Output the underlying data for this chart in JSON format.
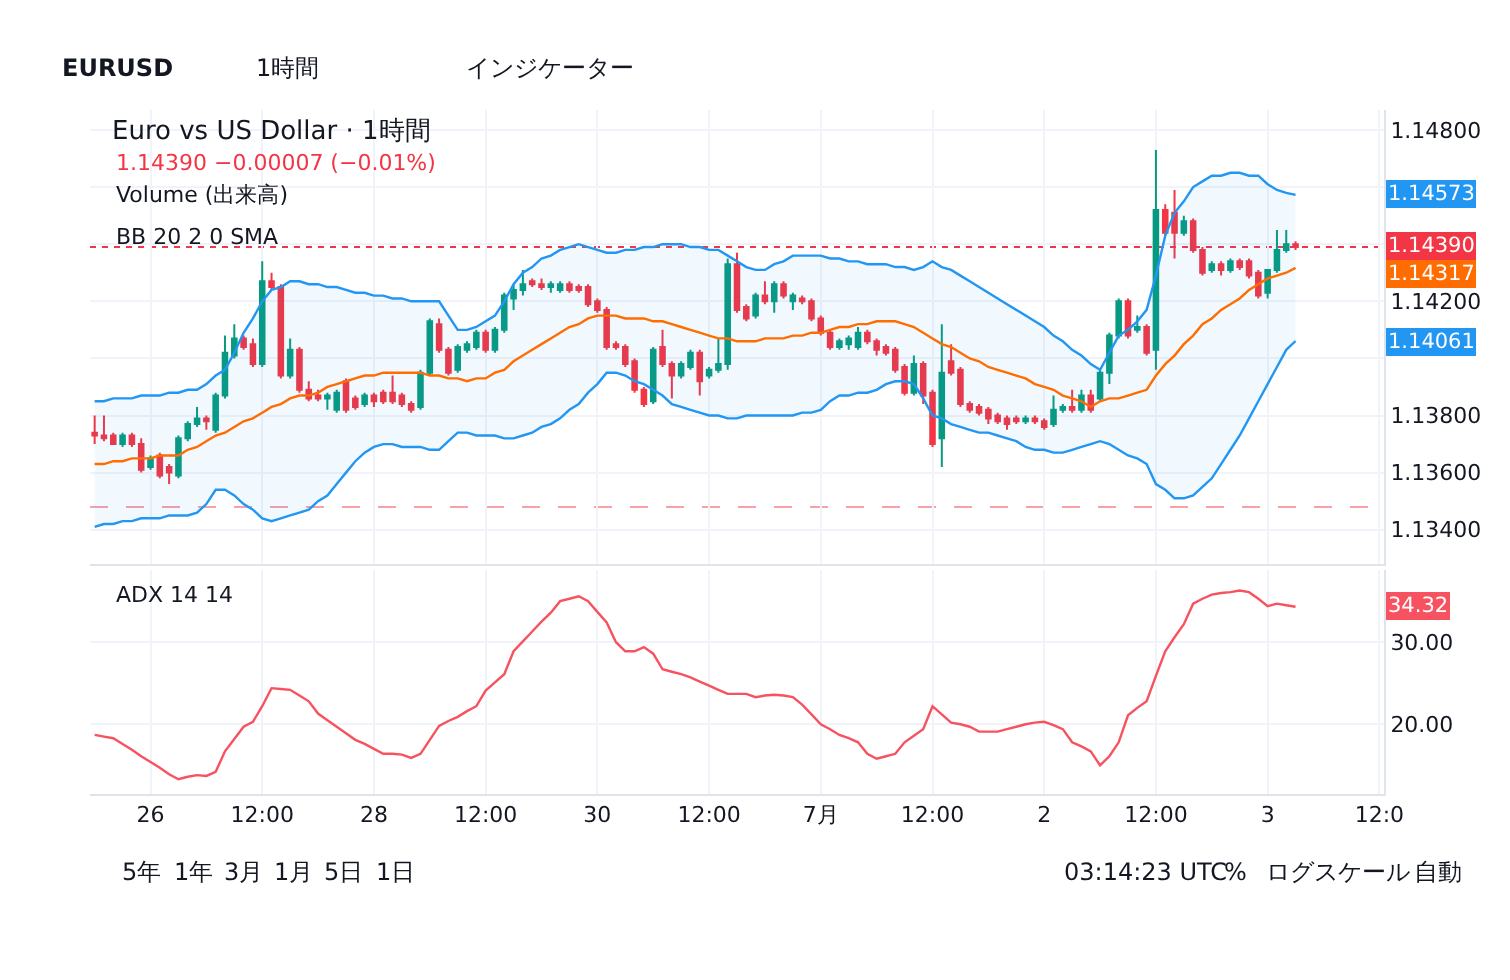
{
  "chart_data": [
    {
      "type": "candlestick",
      "title": "Euro vs US Dollar · 1時間",
      "subtitle": "1.14390 −0.00007 (−0.01%)",
      "annotations": [
        "EURUSD",
        "1時間",
        "インジケーター",
        "Volume (出来高)",
        "BB 20 2 0 SMA",
        "1.14573",
        "1.14317",
        "1.14061"
      ],
      "categories": [
        null,
        null,
        null,
        null,
        null,
        null,
        null,
        null,
        null,
        null,
        null,
        null,
        null,
        null,
        null,
        null,
        null,
        null,
        null,
        null,
        null,
        null,
        null,
        null,
        null,
        null,
        null,
        null,
        null,
        null,
        null,
        null,
        null,
        null,
        null,
        null,
        null,
        null,
        null,
        null,
        null,
        null,
        null,
        null,
        null,
        null,
        null,
        null,
        null,
        null,
        null,
        null,
        null,
        null,
        null,
        null,
        null,
        null,
        null,
        null,
        null,
        null,
        null,
        null,
        null,
        null,
        null,
        null,
        null,
        null,
        null,
        null,
        null,
        null,
        null,
        null,
        null,
        null,
        null,
        null,
        null,
        null,
        null,
        null,
        null,
        null,
        null,
        null,
        null,
        null,
        null,
        null,
        null,
        null,
        null,
        null,
        null,
        null,
        null,
        null,
        null,
        null,
        null,
        null,
        null,
        null,
        null,
        null,
        null,
        null,
        null,
        null,
        null,
        null,
        null,
        null,
        null,
        null,
        null,
        null,
        null,
        null,
        null,
        null,
        null,
        null,
        null,
        null,
        null,
        null,
        null,
        null,
        null,
        null,
        null,
        null,
        null,
        null,
        null
      ],
      "ohlc": [
        [
          1.1374,
          1.138,
          1.137,
          1.1373
        ],
        [
          1.1373,
          1.138,
          1.1371,
          1.1372
        ],
        [
          1.1373,
          1.1374,
          1.137,
          1.137
        ],
        [
          1.137,
          1.1374,
          1.1369,
          1.1373
        ],
        [
          1.1373,
          1.1374,
          1.1369,
          1.137
        ],
        [
          1.137,
          1.1372,
          1.136,
          1.1361
        ],
        [
          1.1362,
          1.1366,
          1.1361,
          1.1365
        ],
        [
          1.1366,
          1.1367,
          1.1358,
          1.1359
        ],
        [
          1.1362,
          1.1363,
          1.1356,
          1.136
        ],
        [
          1.1359,
          1.1373,
          1.1358,
          1.1372
        ],
        [
          1.1372,
          1.1378,
          1.1371,
          1.1377
        ],
        [
          1.1377,
          1.1383,
          1.1376,
          1.1379
        ],
        [
          1.1379,
          1.138,
          1.1375,
          1.1378
        ],
        [
          1.1375,
          1.1388,
          1.1374,
          1.1387
        ],
        [
          1.1387,
          1.1408,
          1.1386,
          1.1402
        ],
        [
          1.1401,
          1.1412,
          1.14,
          1.1407
        ],
        [
          1.1407,
          1.1408,
          1.1403,
          1.1404
        ],
        [
          1.1405,
          1.1407,
          1.1397,
          1.1398
        ],
        [
          1.1398,
          1.1434,
          1.1397,
          1.1427
        ],
        [
          1.1427,
          1.143,
          1.1424,
          1.1425
        ],
        [
          1.1425,
          1.1426,
          1.1393,
          1.1394
        ],
        [
          1.1394,
          1.1407,
          1.1393,
          1.1403
        ],
        [
          1.1403,
          1.1404,
          1.1388,
          1.1389
        ],
        [
          1.1389,
          1.1392,
          1.1385,
          1.1386
        ],
        [
          1.1387,
          1.1389,
          1.1385,
          1.1386
        ],
        [
          1.1386,
          1.1388,
          1.1382,
          1.1387
        ],
        [
          1.1382,
          1.1389,
          1.1381,
          1.1388
        ],
        [
          1.1392,
          1.1393,
          1.1381,
          1.1382
        ],
        [
          1.1386,
          1.1387,
          1.1382,
          1.1383
        ],
        [
          1.1384,
          1.1388,
          1.1383,
          1.1387
        ],
        [
          1.1387,
          1.1388,
          1.1383,
          1.1385
        ],
        [
          1.1388,
          1.1389,
          1.1384,
          1.1385
        ],
        [
          1.1388,
          1.1394,
          1.1384,
          1.1385
        ],
        [
          1.1387,
          1.1388,
          1.1383,
          1.1384
        ],
        [
          1.1384,
          1.1385,
          1.1381,
          1.1382
        ],
        [
          1.1383,
          1.1396,
          1.1382,
          1.1395
        ],
        [
          1.1395,
          1.1414,
          1.1394,
          1.1413
        ],
        [
          1.1412,
          1.1414,
          1.1402,
          1.1403
        ],
        [
          1.1403,
          1.1404,
          1.1394,
          1.1395
        ],
        [
          1.1396,
          1.1405,
          1.1395,
          1.1404
        ],
        [
          1.1403,
          1.1406,
          1.1402,
          1.1405
        ],
        [
          1.1404,
          1.141,
          1.1403,
          1.1409
        ],
        [
          1.1409,
          1.141,
          1.1402,
          1.1403
        ],
        [
          1.1403,
          1.1411,
          1.1402,
          1.141
        ],
        [
          1.141,
          1.1423,
          1.1409,
          1.1422
        ],
        [
          1.1421,
          1.1426,
          1.1417,
          1.1424
        ],
        [
          1.1424,
          1.1431,
          1.1422,
          1.1426
        ],
        [
          1.1427,
          1.1428,
          1.1425,
          1.1426
        ],
        [
          1.1426,
          1.1428,
          1.1424,
          1.1425
        ],
        [
          1.1425,
          1.1427,
          1.1423,
          1.1426
        ],
        [
          1.1424,
          1.1427,
          1.1423,
          1.1426
        ],
        [
          1.1426,
          1.1427,
          1.1423,
          1.1424
        ],
        [
          1.1425,
          1.1426,
          1.1423,
          1.1424
        ],
        [
          1.1425,
          1.1426,
          1.1418,
          1.1419
        ],
        [
          1.142,
          1.1421,
          1.1416,
          1.1417
        ],
        [
          1.1417,
          1.1418,
          1.1403,
          1.1404
        ],
        [
          1.1405,
          1.1406,
          1.1403,
          1.1404
        ],
        [
          1.1404,
          1.1405,
          1.1397,
          1.1398
        ],
        [
          1.1399,
          1.14,
          1.1388,
          1.1389
        ],
        [
          1.1389,
          1.139,
          1.1383,
          1.1384
        ],
        [
          1.1385,
          1.1404,
          1.1384,
          1.1403
        ],
        [
          1.1404,
          1.141,
          1.1397,
          1.1398
        ],
        [
          1.1398,
          1.1399,
          1.1386,
          1.1394
        ],
        [
          1.1394,
          1.1399,
          1.1393,
          1.1398
        ],
        [
          1.1397,
          1.1403,
          1.1396,
          1.1402
        ],
        [
          1.1402,
          1.1403,
          1.1387,
          1.1392
        ],
        [
          1.1394,
          1.1397,
          1.1393,
          1.1396
        ],
        [
          1.1396,
          1.1407,
          1.1395,
          1.1398
        ],
        [
          1.1398,
          1.1435,
          1.1396,
          1.1433
        ],
        [
          1.1433,
          1.1437,
          1.1416,
          1.1417
        ],
        [
          1.1418,
          1.1419,
          1.1413,
          1.1414
        ],
        [
          1.1415,
          1.1423,
          1.1414,
          1.1422
        ],
        [
          1.1422,
          1.1427,
          1.1419,
          1.142
        ],
        [
          1.142,
          1.1427,
          1.1416,
          1.1426
        ],
        [
          1.1426,
          1.1427,
          1.1421,
          1.1422
        ],
        [
          1.142,
          1.1423,
          1.1417,
          1.1422
        ],
        [
          1.1421,
          1.1422,
          1.1419,
          1.142
        ],
        [
          1.142,
          1.1421,
          1.1413,
          1.1414
        ],
        [
          1.1414,
          1.1415,
          1.1408,
          1.1409
        ],
        [
          1.1409,
          1.141,
          1.1403,
          1.1404
        ],
        [
          1.1404,
          1.1407,
          1.1403,
          1.1406
        ],
        [
          1.1405,
          1.1408,
          1.1403,
          1.1407
        ],
        [
          1.1404,
          1.1411,
          1.1403,
          1.1409
        ],
        [
          1.1409,
          1.141,
          1.1405,
          1.1406
        ],
        [
          1.1406,
          1.1407,
          1.1401,
          1.1403
        ],
        [
          1.1404,
          1.1405,
          1.1401,
          1.1402
        ],
        [
          1.1403,
          1.1404,
          1.1395,
          1.1396
        ],
        [
          1.1397,
          1.1398,
          1.1387,
          1.1388
        ],
        [
          1.1388,
          1.1401,
          1.1387,
          1.1398
        ],
        [
          1.1398,
          1.1399,
          1.1384,
          1.1387
        ],
        [
          1.1388,
          1.1389,
          1.1369,
          1.137
        ],
        [
          1.1372,
          1.1412,
          1.1362,
          1.1395
        ],
        [
          1.1399,
          1.1405,
          1.1394,
          1.1395
        ],
        [
          1.1396,
          1.1397,
          1.1383,
          1.1384
        ],
        [
          1.1384,
          1.1385,
          1.1381,
          1.1382
        ],
        [
          1.1383,
          1.1384,
          1.138,
          1.1381
        ],
        [
          1.1382,
          1.1383,
          1.1377,
          1.1379
        ],
        [
          1.138,
          1.1381,
          1.1377,
          1.1378
        ],
        [
          1.1379,
          1.138,
          1.1375,
          1.1377
        ],
        [
          1.1379,
          1.138,
          1.1377,
          1.1378
        ],
        [
          1.1378,
          1.138,
          1.1377,
          1.1379
        ],
        [
          1.1379,
          1.138,
          1.1377,
          1.1378
        ],
        [
          1.1378,
          1.1379,
          1.1375,
          1.1376
        ],
        [
          1.1377,
          1.1387,
          1.1376,
          1.1382
        ],
        [
          1.1382,
          1.1384,
          1.1381,
          1.1383
        ],
        [
          1.1383,
          1.1389,
          1.1381,
          1.1382
        ],
        [
          1.1382,
          1.1389,
          1.1381,
          1.1387
        ],
        [
          1.1387,
          1.1389,
          1.1381,
          1.1382
        ],
        [
          1.1386,
          1.1396,
          1.1385,
          1.1395
        ],
        [
          1.1395,
          1.1409,
          1.1391,
          1.1408
        ],
        [
          1.1408,
          1.1421,
          1.1407,
          1.142
        ],
        [
          1.142,
          1.1421,
          1.1407,
          1.1408
        ],
        [
          1.141,
          1.1415,
          1.1409,
          1.1411
        ],
        [
          1.1411,
          1.1412,
          1.1401,
          1.1402
        ],
        [
          1.1403,
          1.1473,
          1.1396,
          1.1452
        ],
        [
          1.1452,
          1.1454,
          1.1443,
          1.1444
        ],
        [
          1.1451,
          1.1459,
          1.1435,
          1.1444
        ],
        [
          1.1444,
          1.145,
          1.1443,
          1.1448
        ],
        [
          1.1448,
          1.1449,
          1.1437,
          1.1438
        ],
        [
          1.1438,
          1.1439,
          1.1429,
          1.143
        ],
        [
          1.1431,
          1.1434,
          1.143,
          1.1433
        ],
        [
          1.1433,
          1.1434,
          1.1429,
          1.1431
        ],
        [
          1.1431,
          1.1435,
          1.143,
          1.1434
        ],
        [
          1.1434,
          1.1435,
          1.1431,
          1.1432
        ],
        [
          1.1434,
          1.1435,
          1.1428,
          1.1429
        ],
        [
          1.143,
          1.1431,
          1.1421,
          1.1422
        ],
        [
          1.1423,
          1.1431,
          1.1421,
          1.1431
        ],
        [
          1.1431,
          1.1445,
          1.143,
          1.1438
        ],
        [
          1.1438,
          1.1445,
          1.1437,
          1.144
        ],
        [
          1.144,
          1.1441,
          1.1438,
          1.1439
        ],
        null,
        null,
        null,
        null,
        null,
        null,
        null,
        null,
        null
      ],
      "colors": [
        "#f23645",
        "#f23645",
        "#f23645",
        "#089981",
        "#f23645",
        "#f23645",
        "#089981",
        "#f23645",
        "#f23645",
        "#089981",
        "#089981",
        "#089981",
        "#f23645",
        "#089981",
        "#089981",
        "#089981",
        "#f23645",
        "#f23645",
        "#089981",
        "#f23645",
        "#f23645",
        "#089981",
        "#f23645",
        "#f23645",
        "#f23645",
        "#089981",
        "#089981",
        "#f23645",
        "#f23645",
        "#089981",
        "#f23645",
        "#f23645",
        "#f23645",
        "#f23645",
        "#f23645",
        "#089981",
        "#089981",
        "#f23645",
        "#f23645",
        "#089981",
        "#089981",
        "#089981",
        "#f23645",
        "#089981",
        "#089981",
        "#089981",
        "#089981",
        "#f23645",
        "#f23645",
        "#089981",
        "#089981",
        "#f23645",
        "#f23645",
        "#f23645",
        "#f23645",
        "#f23645",
        "#f23645",
        "#f23645",
        "#f23645",
        "#f23645",
        "#089981",
        "#f23645",
        "#f23645",
        "#089981",
        "#089981",
        "#f23645",
        "#089981",
        "#089981",
        "#089981",
        "#f23645",
        "#f23645",
        "#089981",
        "#f23645",
        "#089981",
        "#f23645",
        "#089981",
        "#f23645",
        "#f23645",
        "#f23645",
        "#f23645",
        "#089981",
        "#089981",
        "#089981",
        "#f23645",
        "#f23645",
        "#f23645",
        "#f23645",
        "#f23645",
        "#089981",
        "#f23645",
        "#f23645",
        "#089981",
        "#f23645",
        "#f23645",
        "#f23645",
        "#f23645",
        "#f23645",
        "#f23645",
        "#f23645",
        "#f23645",
        "#089981",
        "#f23645",
        "#f23645",
        "#089981",
        "#089981",
        "#f23645",
        "#089981",
        "#f23645",
        "#089981",
        "#089981",
        "#089981",
        "#f23645",
        "#089981",
        "#f23645",
        "#089981",
        "#f23645",
        "#f23645",
        "#089981",
        "#f23645",
        "#f23645",
        "#089981",
        "#f23645",
        "#089981",
        "#f23645",
        "#f23645",
        "#f23645",
        "#089981",
        "#089981",
        "#089981",
        "#f23645",
        null,
        null,
        null,
        null,
        null,
        null,
        null,
        null,
        null
      ],
      "series": [
        {
          "type": "line",
          "color": "#2196f3",
          "values": [
            1.1385,
            1.1385,
            1.1386,
            1.1386,
            1.1386,
            1.1387,
            1.1387,
            1.1387,
            1.1388,
            1.1388,
            1.1389,
            1.1389,
            1.1391,
            1.1394,
            1.1396,
            1.1402,
            1.1409,
            1.1414,
            1.142,
            1.1424,
            1.1425,
            1.1427,
            1.1427,
            1.1426,
            1.1426,
            1.1425,
            1.1425,
            1.1424,
            1.1423,
            1.1423,
            1.1422,
            1.1422,
            1.1421,
            1.1421,
            1.142,
            1.142,
            1.142,
            1.142,
            1.1415,
            1.141,
            1.141,
            1.1411,
            1.1413,
            1.1415,
            1.142,
            1.1426,
            1.143,
            1.1432,
            1.1435,
            1.1436,
            1.1438,
            1.1439,
            1.144,
            1.1439,
            1.1438,
            1.1437,
            1.1437,
            1.1438,
            1.1438,
            1.1439,
            1.1439,
            1.144,
            1.144,
            1.144,
            1.1439,
            1.1439,
            1.1438,
            1.1438,
            1.1436,
            1.1434,
            1.1432,
            1.1431,
            1.1431,
            1.1433,
            1.1434,
            1.1436,
            1.1436,
            1.1436,
            1.1436,
            1.1435,
            1.1435,
            1.1434,
            1.1434,
            1.1433,
            1.1433,
            1.1433,
            1.1432,
            1.1432,
            1.1431,
            1.1432,
            1.1434,
            1.1432,
            1.1431,
            1.1429,
            1.1427,
            1.1425,
            1.1423,
            1.1421,
            1.1419,
            1.1417,
            1.1415,
            1.1413,
            1.1411,
            1.1408,
            1.1406,
            1.1403,
            1.1401,
            1.1398,
            1.1396,
            1.1402,
            1.1408,
            1.141,
            1.1413,
            1.1417,
            1.1429,
            1.1443,
            1.1451,
            1.1455,
            1.146,
            1.1462,
            1.1464,
            1.1464,
            1.1465,
            1.1465,
            1.1464,
            1.1464,
            1.1461,
            1.1459,
            1.1458,
            1.14573,
            null,
            null,
            null,
            null,
            null,
            null,
            null,
            null,
            null
          ],
          "upper": [
            1.1385,
            1.1385,
            1.1386,
            1.1386,
            1.1386,
            1.1387,
            1.1387,
            1.1387,
            1.1388,
            1.1388,
            1.1389,
            1.1389,
            1.1391,
            1.1394,
            1.1396,
            1.1402,
            1.1409,
            1.1414,
            1.142,
            1.1424,
            1.1425,
            1.1427,
            1.1427,
            1.1426,
            1.1426,
            1.1425,
            1.1425,
            1.1424,
            1.1423,
            1.1423,
            1.1422,
            1.1422,
            1.1421,
            1.1421,
            1.142,
            1.142,
            1.142,
            1.142,
            1.1415,
            1.141,
            1.141,
            1.1411,
            1.1413,
            1.1415,
            1.142,
            1.1426,
            1.143,
            1.1432,
            1.1435,
            1.1436,
            1.1438,
            1.1439,
            1.144,
            1.1439,
            1.1438,
            1.1437,
            1.1437,
            1.1438,
            1.1438,
            1.1439,
            1.1439,
            1.144,
            1.144,
            1.144,
            1.1439,
            1.1439,
            1.1438,
            1.1438,
            1.1436,
            1.1434,
            1.1432,
            1.1431,
            1.1431,
            1.1433,
            1.1434,
            1.1436,
            1.1436,
            1.1436,
            1.1436,
            1.1435,
            1.1435,
            1.1434,
            1.1434,
            1.1433,
            1.1433,
            1.1433,
            1.1432,
            1.1432,
            1.1431,
            1.1432,
            1.1434,
            1.1432,
            1.1431,
            1.1429,
            1.1427,
            1.1425,
            1.1423,
            1.1421,
            1.1419,
            1.1417,
            1.1415,
            1.1413,
            1.1411,
            1.1408,
            1.1406,
            1.1403,
            1.1401,
            1.1398,
            1.1396,
            1.1402,
            1.1408,
            1.141,
            1.1413,
            1.1417,
            1.1429,
            1.1443,
            1.1451,
            1.1455,
            1.146,
            1.1462,
            1.1464,
            1.1464,
            1.1465,
            1.1465,
            1.1464,
            1.1464,
            1.1461,
            1.1459,
            1.1458,
            1.14573,
            null,
            null,
            null,
            null,
            null,
            null,
            null,
            null,
            null
          ],
          "lower": [
            1.1341,
            1.1342,
            1.1342,
            1.1343,
            1.1343,
            1.1344,
            1.1344,
            1.1344,
            1.1345,
            1.1345,
            1.1345,
            1.1346,
            1.1349,
            1.1354,
            1.1354,
            1.1352,
            1.1349,
            1.1347,
            1.1344,
            1.1343,
            1.1344,
            1.1345,
            1.1346,
            1.1347,
            1.135,
            1.1352,
            1.1356,
            1.136,
            1.1364,
            1.1367,
            1.1369,
            1.137,
            1.137,
            1.1369,
            1.1369,
            1.1369,
            1.1368,
            1.1368,
            1.1371,
            1.1374,
            1.1374,
            1.1373,
            1.1373,
            1.1373,
            1.1372,
            1.1372,
            1.1373,
            1.1374,
            1.1376,
            1.1377,
            1.1379,
            1.1382,
            1.1384,
            1.1388,
            1.1391,
            1.1395,
            1.1395,
            1.1394,
            1.1392,
            1.1391,
            1.1389,
            1.1387,
            1.1384,
            1.1383,
            1.1382,
            1.1381,
            1.138,
            1.138,
            1.1379,
            1.1379,
            1.138,
            1.138,
            1.138,
            1.138,
            1.138,
            1.138,
            1.1381,
            1.1381,
            1.1382,
            1.1385,
            1.1387,
            1.1387,
            1.1388,
            1.1388,
            1.1389,
            1.1391,
            1.1392,
            1.1392,
            1.1391,
            1.1386,
            1.138,
            1.1379,
            1.1377,
            1.1376,
            1.1375,
            1.1374,
            1.1374,
            1.1373,
            1.1372,
            1.1371,
            1.1369,
            1.1368,
            1.1368,
            1.1367,
            1.1367,
            1.1368,
            1.1369,
            1.137,
            1.1371,
            1.137,
            1.1368,
            1.1366,
            1.1365,
            1.1363,
            1.1356,
            1.1354,
            1.1351,
            1.1351,
            1.1352,
            1.1355,
            1.1358,
            1.1363,
            1.1368,
            1.1373,
            1.1379,
            1.1385,
            1.1391,
            1.1397,
            1.1403,
            1.14061,
            null,
            null,
            null,
            null,
            null,
            null,
            null,
            null,
            null
          ]
        },
        {
          "type": "line",
          "color": "#2196f3",
          "values": [
            1.1341,
            1.1342,
            1.1342,
            1.1343,
            1.1343,
            1.1344,
            1.1344,
            1.1344,
            1.1345,
            1.1345,
            1.1345,
            1.1346,
            1.1349,
            1.1354,
            1.1354,
            1.1352,
            1.1349,
            1.1347,
            1.1344,
            1.1343,
            1.1344,
            1.1345,
            1.1346,
            1.1347,
            1.135,
            1.1352,
            1.1356,
            1.136,
            1.1364,
            1.1367,
            1.1369,
            1.137,
            1.137,
            1.1369,
            1.1369,
            1.1369,
            1.1368,
            1.1368,
            1.1371,
            1.1374,
            1.1374,
            1.1373,
            1.1373,
            1.1373,
            1.1372,
            1.1372,
            1.1373,
            1.1374,
            1.1376,
            1.1377,
            1.1379,
            1.1382,
            1.1384,
            1.1388,
            1.1391,
            1.1395,
            1.1395,
            1.1394,
            1.1392,
            1.1391,
            1.1389,
            1.1387,
            1.1384,
            1.1383,
            1.1382,
            1.1381,
            1.138,
            1.138,
            1.1379,
            1.1379,
            1.138,
            1.138,
            1.138,
            1.138,
            1.138,
            1.138,
            1.1381,
            1.1381,
            1.1382,
            1.1385,
            1.1387,
            1.1387,
            1.1388,
            1.1388,
            1.1389,
            1.1391,
            1.1392,
            1.1392,
            1.1391,
            1.1386,
            1.138,
            1.1379,
            1.1377,
            1.1376,
            1.1375,
            1.1374,
            1.1374,
            1.1373,
            1.1372,
            1.1371,
            1.1369,
            1.1368,
            1.1368,
            1.1367,
            1.1367,
            1.1368,
            1.1369,
            1.137,
            1.1371,
            1.137,
            1.1368,
            1.1366,
            1.1365,
            1.1363,
            1.1356,
            1.1354,
            1.1351,
            1.1351,
            1.1352,
            1.1355,
            1.1358,
            1.1363,
            1.1368,
            1.1373,
            1.1379,
            1.1385,
            1.1391,
            1.1397,
            1.1403,
            1.14061,
            null,
            null,
            null,
            null,
            null,
            null,
            null,
            null,
            null
          ]
        },
        {
          "type": "line",
          "color": "#ff6d00",
          "values": [
            1.1363,
            1.1363,
            1.1364,
            1.1364,
            1.1365,
            1.1365,
            1.1365,
            1.1366,
            1.1366,
            1.1366,
            1.1368,
            1.1369,
            1.1371,
            1.1373,
            1.1374,
            1.1376,
            1.1378,
            1.1379,
            1.1381,
            1.1383,
            1.1384,
            1.1386,
            1.1387,
            1.1387,
            1.1388,
            1.139,
            1.1391,
            1.1392,
            1.1393,
            1.1394,
            1.1394,
            1.1395,
            1.1395,
            1.1395,
            1.1395,
            1.1395,
            1.1394,
            1.1394,
            1.1393,
            1.1393,
            1.1392,
            1.1393,
            1.1393,
            1.1395,
            1.1396,
            1.1399,
            1.1401,
            1.1403,
            1.1405,
            1.1407,
            1.1409,
            1.1411,
            1.1412,
            1.1414,
            1.1415,
            1.1415,
            1.1415,
            1.1414,
            1.1414,
            1.1414,
            1.1413,
            1.1413,
            1.1412,
            1.1411,
            1.141,
            1.1409,
            1.1408,
            1.1407,
            1.1407,
            1.1406,
            1.1406,
            1.1406,
            1.1407,
            1.1407,
            1.1407,
            1.1408,
            1.1408,
            1.1409,
            1.1409,
            1.141,
            1.1411,
            1.1411,
            1.1412,
            1.1412,
            1.1413,
            1.1413,
            1.1413,
            1.1412,
            1.1411,
            1.1409,
            1.1407,
            1.1405,
            1.1404,
            1.1402,
            1.14,
            1.1399,
            1.1397,
            1.1396,
            1.1395,
            1.1394,
            1.1393,
            1.1391,
            1.139,
            1.1389,
            1.1387,
            1.1386,
            1.1385,
            1.1383,
            1.1385,
            1.1386,
            1.1386,
            1.1387,
            1.1388,
            1.1389,
            1.1394,
            1.1398,
            1.1401,
            1.1405,
            1.1408,
            1.1412,
            1.1414,
            1.1417,
            1.1419,
            1.1421,
            1.1424,
            1.1426,
            1.1428,
            1.1429,
            1.143,
            1.14317,
            null,
            null,
            null,
            null,
            null,
            null,
            null,
            null,
            null
          ]
        }
      ],
      "ref_lines": [
        {
          "axis": "y",
          "value": 1.1439,
          "label": "1.14390",
          "color": "#f23645",
          "line_style": "dotted"
        },
        {
          "axis": "y",
          "value": 1.1348,
          "color": "#f7a1a8",
          "line_style": "dashed"
        }
      ],
      "ylim": [
        1.1328,
        1.1487
      ],
      "yticks": [
        {
          "value": 1.148,
          "label": "1.14800"
        },
        {
          "value": 1.146,
          "label": null
        },
        {
          "value": 1.144,
          "label": null
        },
        {
          "value": 1.142,
          "label": "1.14200"
        },
        {
          "value": 1.14,
          "label": null
        },
        {
          "value": 1.138,
          "label": "1.13800"
        },
        {
          "value": 1.136,
          "label": "1.13600"
        },
        {
          "value": 1.134,
          "label": "1.13400"
        }
      ],
      "grid": true,
      "tick_labels": "y"
    },
    {
      "type": "line",
      "annotations": [
        "ADX 14 14",
        "5年",
        "1年",
        "3月",
        "1月",
        "5日",
        "1日",
        "03:14:23 UTC",
        "%",
        "ログスケール",
        "自動",
        {
          "text": "34.32",
          "y": 34.32
        }
      ],
      "categories": [
        null,
        null,
        null,
        null,
        null,
        null,
        "26",
        null,
        null,
        null,
        null,
        null,
        null,
        null,
        null,
        null,
        null,
        null,
        "12:00",
        null,
        null,
        null,
        null,
        null,
        null,
        null,
        null,
        null,
        null,
        null,
        "28",
        null,
        null,
        null,
        null,
        null,
        null,
        null,
        null,
        null,
        null,
        null,
        "12:00",
        null,
        null,
        null,
        null,
        null,
        null,
        null,
        null,
        null,
        null,
        null,
        "30",
        null,
        null,
        null,
        null,
        null,
        null,
        null,
        null,
        null,
        null,
        null,
        "12:00",
        null,
        null,
        null,
        null,
        null,
        null,
        null,
        null,
        null,
        null,
        null,
        "7月",
        null,
        null,
        null,
        null,
        null,
        null,
        null,
        null,
        null,
        null,
        null,
        "12:00",
        null,
        null,
        null,
        null,
        null,
        null,
        null,
        null,
        null,
        null,
        null,
        "2",
        null,
        null,
        null,
        null,
        null,
        null,
        null,
        null,
        null,
        null,
        null,
        "12:00",
        null,
        null,
        null,
        null,
        null,
        null,
        null,
        null,
        null,
        null,
        null,
        "3",
        null,
        null,
        null,
        null,
        null,
        null,
        null,
        null,
        null,
        null,
        null,
        "12:0"
      ],
      "series": [
        {
          "type": "line",
          "color": "#f7525f",
          "values": [
            18.7,
            18.5,
            18.3,
            17.6,
            16.9,
            16.1,
            15.4,
            14.7,
            13.9,
            13.3,
            13.6,
            13.8,
            13.7,
            14.2,
            16.7,
            18.2,
            19.7,
            20.3,
            22.2,
            24.4,
            24.3,
            24.2,
            23.5,
            22.8,
            21.3,
            20.5,
            19.7,
            18.9,
            18.1,
            17.6,
            17,
            16.4,
            16.4,
            16.3,
            15.9,
            16.4,
            18.1,
            19.8,
            20.4,
            20.9,
            21.6,
            22.2,
            24.1,
            25.1,
            26.1,
            28.9,
            30.1,
            31.3,
            32.5,
            33.6,
            35,
            35.3,
            35.6,
            35,
            33.7,
            32.4,
            30,
            28.9,
            28.9,
            29.4,
            28.6,
            26.7,
            26.4,
            26.1,
            25.7,
            25.2,
            24.7,
            24.2,
            23.7,
            23.7,
            23.7,
            23.3,
            23.5,
            23.6,
            23.5,
            23.3,
            22.4,
            21.2,
            20,
            19.4,
            18.7,
            18.3,
            17.8,
            16.4,
            15.8,
            16.1,
            16.4,
            17.8,
            18.6,
            19.4,
            22.2,
            21.2,
            20.2,
            20,
            19.7,
            19.1,
            19.1,
            19.1,
            19.4,
            19.7,
            20,
            20.2,
            20.3,
            19.9,
            19.4,
            17.8,
            17.3,
            16.7,
            15,
            16.1,
            17.8,
            21.1,
            22,
            22.8,
            25.9,
            28.9,
            30.6,
            32.2,
            34.7,
            35.3,
            35.8,
            36,
            36.1,
            36.3,
            36.1,
            35.3,
            34.4,
            34.7,
            34.5,
            34.32,
            null,
            null,
            null,
            null,
            null,
            null,
            null,
            null,
            null
          ]
        }
      ],
      "ylim": [
        11.5,
        38.8
      ],
      "yticks": [
        {
          "value": 20,
          "label": "20.00"
        },
        {
          "value": 30,
          "label": "30.00"
        }
      ],
      "grid": true
    }
  ]
}
